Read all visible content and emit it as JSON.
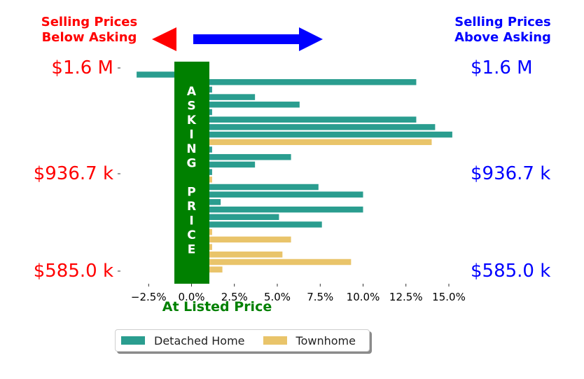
{
  "chart_data": {
    "type": "bar",
    "orientation": "horizontal",
    "bar_style": "stacked",
    "annotations": {
      "left_header": "Selling Prices\nBelow Asking",
      "right_header": "Selling Prices\nAbove Asking",
      "center_band": "ASKING PRICE",
      "x_caption": "At Listed Price"
    },
    "y_labels": [
      "$1.6 M",
      "$936.7 k",
      "$585.0 k"
    ],
    "x_ticks": [
      "−2.5%",
      "0.0%",
      "2.5%",
      "5.0%",
      "7.5%",
      "10.0%",
      "12.5%",
      "15.0%"
    ],
    "x_tick_values": [
      -2.5,
      0,
      2.5,
      5,
      7.5,
      10,
      12.5,
      15
    ],
    "xlim": [
      -3.5,
      16.6
    ],
    "ylabel": "",
    "legend": {
      "placement": "bottom-center",
      "entries": [
        "Detached Home",
        "Townhome"
      ]
    },
    "series": [
      {
        "name": "Detached Home",
        "values": [
          -3.2,
          13.1,
          1.2,
          3.7,
          6.3,
          1.2,
          13.1,
          14.2,
          15.2,
          0,
          1.2,
          5.8,
          3.7,
          1.2,
          0,
          7.4,
          10.0,
          1.7,
          10.0,
          5.1,
          7.6,
          0,
          0,
          0,
          0,
          0,
          0
        ]
      },
      {
        "name": "Townhome",
        "values": [
          0,
          0,
          0,
          0,
          0,
          0,
          0,
          0,
          0,
          14.0,
          0,
          0,
          0,
          0,
          1.2,
          0,
          0,
          0,
          0,
          0,
          0,
          1.2,
          5.8,
          1.2,
          5.3,
          9.3,
          1.8
        ]
      }
    ]
  },
  "colors": {
    "detached": "#2a9d8f",
    "townhome": "#e9c46a",
    "band": "#008000",
    "below": "#ff0000",
    "above": "#0000ff",
    "axis": "#000000",
    "caption": "#008000"
  },
  "icons": {
    "left_arrow": "left-triangle-arrow",
    "right_arrow": "right-block-arrow"
  }
}
